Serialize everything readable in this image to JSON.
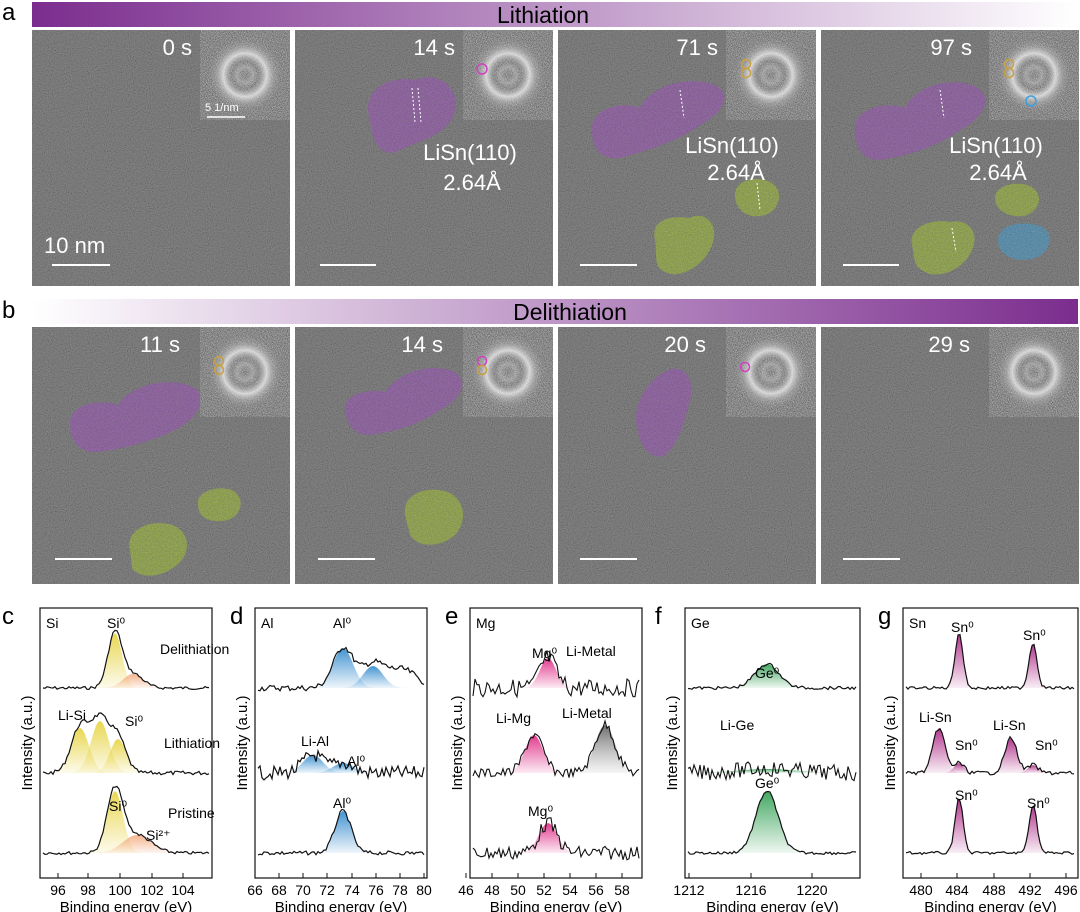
{
  "figure": {
    "panel_labels": [
      "a",
      "b",
      "c",
      "d",
      "e",
      "f",
      "g"
    ],
    "banner_a": "Lithiation",
    "banner_b": "Delithiation",
    "colors": {
      "purple": "#7b2d8e",
      "lisn_purple": "#b36ad0",
      "lisn_green": "#b8d74a",
      "lisn_blue": "#5ab4e6",
      "si_yellow": "#e8d54a",
      "al_blue": "#3a8fcf",
      "mg_pink": "#e0338a",
      "ge_green": "#3aa35a",
      "sn_magenta": "#b0308a"
    }
  },
  "row_a": {
    "frames": [
      {
        "time": "0 s",
        "scale_bar": "10 nm",
        "fft_scale": "5 1/nm"
      },
      {
        "time": "14 s",
        "label1": "LiSn(110)",
        "label2": "2.64Å"
      },
      {
        "time": "71 s",
        "label1": "LiSn(110)",
        "label2": "2.64Å"
      },
      {
        "time": "97 s",
        "label1": "LiSn(110)",
        "label2": "2.64Å"
      }
    ]
  },
  "row_b": {
    "frames": [
      {
        "time": "11 s"
      },
      {
        "time": "14 s"
      },
      {
        "time": "20 s"
      },
      {
        "time": "29 s"
      }
    ]
  },
  "xps": {
    "ylabel": "Intensity (a.u.)",
    "xlabel": "Binding energy (eV)",
    "panels": [
      {
        "letter": "c",
        "element": "Si",
        "ticks": [
          "96",
          "98",
          "100",
          "102",
          "104"
        ],
        "annotations": [
          "Si⁰",
          "Delithiation",
          "Li-Si",
          "Si⁰",
          "Lithiation",
          "Si⁰",
          "Pristine",
          "Si²⁺"
        ]
      },
      {
        "letter": "d",
        "element": "Al",
        "ticks": [
          "66",
          "68",
          "70",
          "72",
          "74",
          "76",
          "78",
          "80"
        ],
        "annotations": [
          "Al⁰",
          "Li-Al",
          "Al⁰",
          "Al⁰"
        ]
      },
      {
        "letter": "e",
        "element": "Mg",
        "ticks": [
          "46",
          "48",
          "50",
          "52",
          "54",
          "56",
          "58"
        ],
        "annotations": [
          "Mg⁰",
          "Li-Metal",
          "Li-Mg",
          "Li-Metal",
          "Mg⁰"
        ]
      },
      {
        "letter": "f",
        "element": "Ge",
        "ticks": [
          "1212",
          "1216",
          "1220"
        ],
        "annotations": [
          "Ge⁰",
          "Li-Ge",
          "Ge⁰"
        ]
      },
      {
        "letter": "g",
        "element": "Sn",
        "ticks": [
          "480",
          "484",
          "488",
          "492",
          "496"
        ],
        "annotations": [
          "Sn⁰",
          "Sn⁰",
          "Li-Sn",
          "Li-Sn",
          "Sn⁰",
          "Sn⁰",
          "Sn⁰",
          "Sn⁰"
        ]
      }
    ]
  }
}
